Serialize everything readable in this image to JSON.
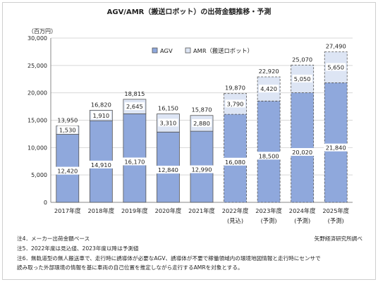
{
  "title": "AGV/AMR（搬送ロボット）の出荷金額推移・予測",
  "unit_label": "（百万円）",
  "source": "矢野経済研究所調べ",
  "notes": [
    "注4．メーカー出荷金額ベース",
    "注5．2022年度は見込値、2023年度以降は予測値",
    "注6．無軌道型の無人搬送車で、走行時に誘導体が必要なAGV、誘導体が不要で稼働領域内の環境地図情報と走行時にセンサで",
    "読み取った外部環境の情報を基に車両の自己位置を推定しながら走行するAMRを対象とする。"
  ],
  "colors": {
    "agv": "#8fa8dc",
    "amr": "#dde5f4",
    "border": "#555555",
    "grid": "#d8d8d8"
  },
  "chart_data": {
    "type": "bar",
    "stacked": true,
    "categories": [
      "2017年度",
      "2018年度",
      "2019年度",
      "2020年度",
      "2021年度",
      "2022年度",
      "2023年度",
      "2024年度",
      "2025年度"
    ],
    "category_sublabels": [
      "",
      "",
      "",
      "",
      "",
      "(見込)",
      "(予測)",
      "(予測)",
      "(予測)"
    ],
    "series": [
      {
        "name": "AGV",
        "values": [
          12420,
          14910,
          16170,
          12840,
          12990,
          16080,
          18500,
          20020,
          21840
        ]
      },
      {
        "name": "AMR（搬送ロボット）",
        "values": [
          1530,
          1910,
          2645,
          3310,
          2880,
          3790,
          4420,
          5050,
          5650
        ]
      }
    ],
    "totals": [
      13950,
      16820,
      18815,
      16150,
      15870,
      19870,
      22920,
      25070,
      27490
    ],
    "dashed_from_index": 5,
    "ylim": [
      0,
      30000
    ],
    "yticks": [
      0,
      5000,
      10000,
      15000,
      20000,
      25000,
      30000
    ],
    "ytick_labels": [
      "0",
      "5,000",
      "10,000",
      "15,000",
      "20,000",
      "25,000",
      "30,000"
    ],
    "grid": true,
    "legend_position": "top-center"
  }
}
